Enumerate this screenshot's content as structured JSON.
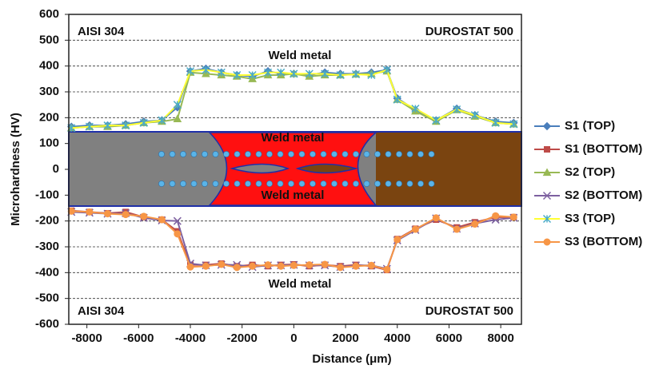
{
  "chart_data": {
    "type": "line",
    "x_label": "Distance (μm)",
    "y_label": "Microhardness (HV)",
    "xlim": [
      -8700,
      8800
    ],
    "ylim": [
      -600,
      600
    ],
    "xticks": [
      -8000,
      -6000,
      -4000,
      -2000,
      0,
      2000,
      4000,
      6000,
      8000
    ],
    "yticks": [
      -600,
      -500,
      -400,
      -300,
      -200,
      -100,
      0,
      100,
      200,
      300,
      400,
      500,
      600
    ],
    "grid": true,
    "legend": "right",
    "annotations": [
      {
        "text": "AISI 304"
      },
      {
        "text": "DUROSTAT 500"
      },
      {
        "text": "Weld metal"
      },
      {
        "text": "Weld metal"
      },
      {
        "text": "Weld metal"
      },
      {
        "text": "Weld metal"
      },
      {
        "text": "AISI 304"
      },
      {
        "text": "DUROSTAT 500"
      }
    ],
    "x": [
      -8600,
      -7900,
      -7200,
      -6500,
      -5800,
      -5100,
      -4500,
      -4000,
      -3400,
      -2800,
      -2200,
      -1600,
      -1000,
      -500,
      0,
      600,
      1200,
      1800,
      2400,
      3000,
      3600,
      4000,
      4700,
      5500,
      6300,
      7000,
      7800,
      8500
    ],
    "series": [
      {
        "name": "S1 (TOP)",
        "color": "#4a7ebb",
        "marker": "diamond",
        "values": [
          165,
          170,
          170,
          175,
          185,
          190,
          240,
          380,
          390,
          375,
          365,
          360,
          380,
          370,
          370,
          365,
          375,
          370,
          370,
          375,
          385,
          275,
          230,
          190,
          235,
          210,
          185,
          180
        ]
      },
      {
        "name": "S1 (BOTTOM)",
        "color": "#be4b48",
        "marker": "square",
        "values": [
          -160,
          -165,
          -170,
          -165,
          -185,
          -195,
          -240,
          -370,
          -370,
          -365,
          -375,
          -370,
          -375,
          -370,
          -368,
          -375,
          -370,
          -375,
          -370,
          -375,
          -390,
          -270,
          -230,
          -195,
          -225,
          -205,
          -185,
          -185
        ]
      },
      {
        "name": "S2 (TOP)",
        "color": "#98b954",
        "marker": "triangle",
        "values": [
          160,
          165,
          165,
          170,
          180,
          185,
          195,
          375,
          370,
          365,
          360,
          350,
          365,
          365,
          370,
          360,
          365,
          365,
          368,
          370,
          380,
          270,
          225,
          185,
          230,
          205,
          180,
          175
        ]
      },
      {
        "name": "S2 (BOTTOM)",
        "color": "#7d60a0",
        "marker": "x",
        "values": [
          -165,
          -168,
          -172,
          -170,
          -188,
          -198,
          -200,
          -365,
          -372,
          -370,
          -370,
          -378,
          -372,
          -372,
          -370,
          -372,
          -372,
          -378,
          -372,
          -372,
          -385,
          -275,
          -235,
          -190,
          -230,
          -210,
          -195,
          -188
        ]
      },
      {
        "name": "S3 (TOP)",
        "color": "#ffff33",
        "marker_color": "#4bacc6",
        "marker": "star",
        "values": [
          160,
          165,
          170,
          170,
          180,
          190,
          250,
          380,
          385,
          375,
          365,
          365,
          375,
          375,
          370,
          370,
          370,
          365,
          368,
          365,
          385,
          270,
          235,
          190,
          232,
          210,
          180,
          175
        ]
      },
      {
        "name": "S3 (BOTTOM)",
        "color": "#f79646",
        "marker": "circle",
        "values": [
          -162,
          -165,
          -172,
          -175,
          -182,
          -195,
          -250,
          -378,
          -375,
          -368,
          -380,
          -375,
          -370,
          -375,
          -372,
          -370,
          -368,
          -380,
          -375,
          -372,
          -388,
          -272,
          -232,
          -188,
          -232,
          -212,
          -180,
          -185
        ]
      }
    ]
  }
}
